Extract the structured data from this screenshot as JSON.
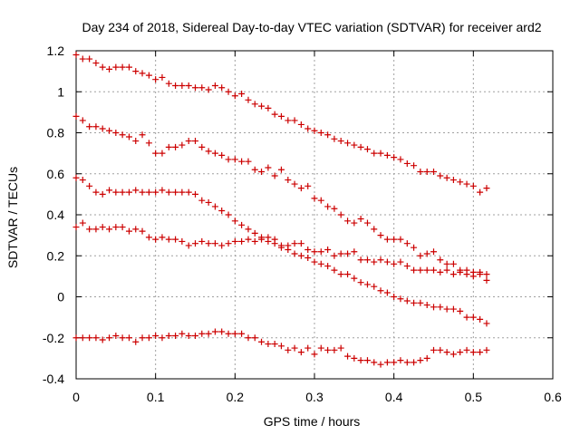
{
  "chart_data": {
    "type": "scatter",
    "title": "Day 234 of 2018, Sidereal Day-to-day VTEC variation (SDTVAR) for receiver ard2",
    "xlabel": "GPS time / hours",
    "ylabel": "SDTVAR / TECUs",
    "xlim": [
      0,
      0.6
    ],
    "ylim": [
      -0.4,
      1.2
    ],
    "xticks": [
      0,
      0.1,
      0.2,
      0.3,
      0.4,
      0.5,
      0.6
    ],
    "xtick_labels": [
      "0",
      "0.1",
      "0.2",
      "0.3",
      "0.4",
      "0.5",
      "0.6"
    ],
    "yticks": [
      -0.4,
      -0.2,
      0,
      0.2,
      0.4,
      0.6,
      0.8,
      1,
      1.2
    ],
    "ytick_labels": [
      "-0.4",
      "-0.2",
      "0",
      "0.2",
      "0.4",
      "0.6",
      "0.8",
      "1",
      "1.2"
    ],
    "grid": true,
    "marker": "+",
    "marker_color": "#cc0000",
    "series": [
      {
        "name": "series-1",
        "x": [
          0.0,
          0.0083,
          0.0167,
          0.025,
          0.0333,
          0.0417,
          0.05,
          0.0583,
          0.0667,
          0.075,
          0.0833,
          0.0917,
          0.1,
          0.1083,
          0.1167,
          0.125,
          0.1333,
          0.1417,
          0.15,
          0.1583,
          0.1667,
          0.175,
          0.1833,
          0.1917,
          0.2,
          0.2083,
          0.2167,
          0.225,
          0.2333,
          0.2417,
          0.25,
          0.2583,
          0.2667,
          0.275,
          0.2833,
          0.2917,
          0.3,
          0.3083,
          0.3167,
          0.325,
          0.3333,
          0.3417,
          0.35,
          0.3583,
          0.3667,
          0.375,
          0.3833,
          0.3917,
          0.4,
          0.4083,
          0.4167,
          0.425,
          0.4333,
          0.4417,
          0.45,
          0.4583,
          0.4667,
          0.475,
          0.4833,
          0.4917,
          0.5,
          0.5083,
          0.5167
        ],
        "y": [
          1.18,
          1.16,
          1.16,
          1.14,
          1.12,
          1.11,
          1.12,
          1.12,
          1.12,
          1.1,
          1.09,
          1.08,
          1.06,
          1.07,
          1.04,
          1.03,
          1.03,
          1.03,
          1.02,
          1.02,
          1.01,
          1.03,
          1.02,
          1.0,
          0.98,
          0.99,
          0.96,
          0.94,
          0.93,
          0.92,
          0.89,
          0.88,
          0.86,
          0.86,
          0.84,
          0.82,
          0.81,
          0.8,
          0.79,
          0.77,
          0.76,
          0.75,
          0.74,
          0.73,
          0.72,
          0.7,
          0.7,
          0.69,
          0.68,
          0.67,
          0.65,
          0.64,
          0.61,
          0.61,
          0.61,
          0.59,
          0.58,
          0.57,
          0.56,
          0.55,
          0.54,
          0.51,
          0.53
        ]
      },
      {
        "name": "series-2",
        "x": [
          0.0,
          0.0083,
          0.0167,
          0.025,
          0.0333,
          0.0417,
          0.05,
          0.0583,
          0.0667,
          0.075,
          0.0833,
          0.0917,
          0.1,
          0.1083,
          0.1167,
          0.125,
          0.1333,
          0.1417,
          0.15,
          0.1583,
          0.1667,
          0.175,
          0.1833,
          0.1917,
          0.2,
          0.2083,
          0.2167,
          0.225,
          0.2333,
          0.2417,
          0.25,
          0.2583,
          0.2667,
          0.275,
          0.2833,
          0.2917,
          0.3,
          0.3083,
          0.3167,
          0.325,
          0.3333,
          0.3417,
          0.35,
          0.3583,
          0.3667,
          0.375,
          0.3833,
          0.3917,
          0.4,
          0.4083,
          0.4167,
          0.425,
          0.4333,
          0.4417,
          0.45,
          0.4583,
          0.4667,
          0.475,
          0.4833,
          0.4917,
          0.5,
          0.5083,
          0.5167
        ],
        "y": [
          0.88,
          0.86,
          0.83,
          0.83,
          0.82,
          0.81,
          0.8,
          0.79,
          0.78,
          0.76,
          0.79,
          0.75,
          0.7,
          0.7,
          0.73,
          0.73,
          0.74,
          0.76,
          0.76,
          0.73,
          0.71,
          0.7,
          0.69,
          0.67,
          0.67,
          0.66,
          0.66,
          0.62,
          0.61,
          0.63,
          0.59,
          0.62,
          0.57,
          0.55,
          0.53,
          0.54,
          0.48,
          0.47,
          0.44,
          0.43,
          0.4,
          0.37,
          0.36,
          0.38,
          0.36,
          0.33,
          0.3,
          0.28,
          0.28,
          0.28,
          0.26,
          0.24,
          0.2,
          0.21,
          0.22,
          0.18,
          0.16,
          0.16,
          0.13,
          0.13,
          0.12,
          0.12,
          0.11
        ]
      },
      {
        "name": "series-3",
        "x": [
          0.0,
          0.0083,
          0.0167,
          0.025,
          0.0333,
          0.0417,
          0.05,
          0.0583,
          0.0667,
          0.075,
          0.0833,
          0.0917,
          0.1,
          0.1083,
          0.1167,
          0.125,
          0.1333,
          0.1417,
          0.15,
          0.1583,
          0.1667,
          0.175,
          0.1833,
          0.1917,
          0.2,
          0.2083,
          0.2167,
          0.225,
          0.2333,
          0.2417,
          0.25,
          0.2583,
          0.2667,
          0.275,
          0.2833,
          0.2917,
          0.3,
          0.3083,
          0.3167,
          0.325,
          0.3333,
          0.3417,
          0.35,
          0.3583,
          0.3667,
          0.375,
          0.3833,
          0.3917,
          0.4,
          0.4083,
          0.4167,
          0.425,
          0.4333,
          0.4417,
          0.45,
          0.4583,
          0.4667,
          0.475,
          0.4833,
          0.4917,
          0.5,
          0.5083,
          0.5167
        ],
        "y": [
          0.58,
          0.57,
          0.54,
          0.51,
          0.5,
          0.52,
          0.51,
          0.51,
          0.51,
          0.52,
          0.51,
          0.51,
          0.51,
          0.52,
          0.51,
          0.51,
          0.51,
          0.51,
          0.5,
          0.47,
          0.46,
          0.44,
          0.42,
          0.4,
          0.37,
          0.35,
          0.33,
          0.31,
          0.29,
          0.27,
          0.26,
          0.24,
          0.23,
          0.21,
          0.2,
          0.19,
          0.17,
          0.16,
          0.15,
          0.13,
          0.11,
          0.11,
          0.09,
          0.07,
          0.06,
          0.05,
          0.03,
          0.02,
          0.0,
          -0.01,
          -0.02,
          -0.03,
          -0.03,
          -0.04,
          -0.05,
          -0.05,
          -0.06,
          -0.06,
          -0.07,
          -0.1,
          -0.1,
          -0.11,
          -0.13
        ]
      },
      {
        "name": "series-4",
        "x": [
          0.0,
          0.0083,
          0.0167,
          0.025,
          0.0333,
          0.0417,
          0.05,
          0.0583,
          0.0667,
          0.075,
          0.0833,
          0.0917,
          0.1,
          0.1083,
          0.1167,
          0.125,
          0.1333,
          0.1417,
          0.15,
          0.1583,
          0.1667,
          0.175,
          0.1833,
          0.1917,
          0.2,
          0.2083,
          0.2167,
          0.225,
          0.2333,
          0.2417,
          0.25,
          0.2583,
          0.2667,
          0.275,
          0.2833,
          0.2917,
          0.3,
          0.3083,
          0.3167,
          0.325,
          0.3333,
          0.3417,
          0.35,
          0.3583,
          0.3667,
          0.375,
          0.3833,
          0.3917,
          0.4,
          0.4083,
          0.4167,
          0.425,
          0.4333,
          0.4417,
          0.45,
          0.4583,
          0.4667,
          0.475,
          0.4833,
          0.4917,
          0.5,
          0.5083,
          0.5167
        ],
        "y": [
          0.34,
          0.36,
          0.33,
          0.33,
          0.34,
          0.33,
          0.34,
          0.34,
          0.32,
          0.33,
          0.32,
          0.29,
          0.28,
          0.29,
          0.28,
          0.28,
          0.27,
          0.25,
          0.26,
          0.27,
          0.26,
          0.26,
          0.25,
          0.26,
          0.27,
          0.27,
          0.28,
          0.27,
          0.28,
          0.29,
          0.28,
          0.25,
          0.25,
          0.26,
          0.26,
          0.23,
          0.22,
          0.22,
          0.23,
          0.2,
          0.21,
          0.21,
          0.22,
          0.18,
          0.18,
          0.17,
          0.18,
          0.17,
          0.16,
          0.17,
          0.15,
          0.13,
          0.13,
          0.13,
          0.13,
          0.12,
          0.13,
          0.11,
          0.12,
          0.11,
          0.1,
          0.11,
          0.08
        ]
      },
      {
        "name": "series-5",
        "x": [
          0.0,
          0.0083,
          0.0167,
          0.025,
          0.0333,
          0.0417,
          0.05,
          0.0583,
          0.0667,
          0.075,
          0.0833,
          0.0917,
          0.1,
          0.1083,
          0.1167,
          0.125,
          0.1333,
          0.1417,
          0.15,
          0.1583,
          0.1667,
          0.175,
          0.1833,
          0.1917,
          0.2,
          0.2083,
          0.2167,
          0.225,
          0.2333,
          0.2417,
          0.25,
          0.2583,
          0.2667,
          0.275,
          0.2833,
          0.2917,
          0.3,
          0.3083,
          0.3167,
          0.325,
          0.3333,
          0.3417,
          0.35,
          0.3583,
          0.3667,
          0.375,
          0.3833,
          0.3917,
          0.4,
          0.4083,
          0.4167,
          0.425,
          0.4333,
          0.4417,
          0.45,
          0.4583,
          0.4667,
          0.475,
          0.4833,
          0.4917,
          0.5,
          0.5083,
          0.5167
        ],
        "y": [
          -0.2,
          -0.2,
          -0.2,
          -0.2,
          -0.21,
          -0.2,
          -0.19,
          -0.2,
          -0.2,
          -0.22,
          -0.2,
          -0.2,
          -0.19,
          -0.2,
          -0.19,
          -0.19,
          -0.18,
          -0.19,
          -0.19,
          -0.18,
          -0.18,
          -0.17,
          -0.17,
          -0.18,
          -0.18,
          -0.18,
          -0.2,
          -0.2,
          -0.22,
          -0.23,
          -0.23,
          -0.24,
          -0.26,
          -0.25,
          -0.27,
          -0.25,
          -0.28,
          -0.25,
          -0.26,
          -0.26,
          -0.25,
          -0.29,
          -0.3,
          -0.31,
          -0.31,
          -0.32,
          -0.33,
          -0.32,
          -0.32,
          -0.31,
          -0.32,
          -0.32,
          -0.31,
          -0.3,
          -0.26,
          -0.26,
          -0.27,
          -0.28,
          -0.27,
          -0.26,
          -0.27,
          -0.27,
          -0.26
        ]
      }
    ]
  }
}
